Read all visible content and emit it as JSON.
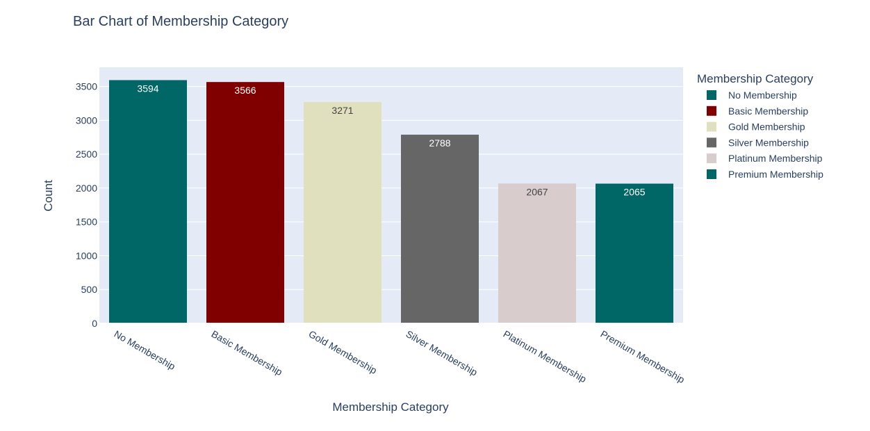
{
  "chart_data": {
    "type": "bar",
    "title": "Bar Chart of Membership Category",
    "xlabel": "Membership Category",
    "ylabel": "Count",
    "categories": [
      "No Membership",
      "Basic Membership",
      "Gold Membership",
      "Silver Membership",
      "Platinum Membership",
      "Premium Membership"
    ],
    "values": [
      3594,
      3566,
      3271,
      2788,
      2067,
      2065
    ],
    "colors": [
      "#006666",
      "#800000",
      "#e0e0be",
      "#666666",
      "#d8cccc",
      "#006666"
    ],
    "label_colors": [
      "#ffffff",
      "#ffffff",
      "#444444",
      "#ffffff",
      "#444444",
      "#ffffff"
    ],
    "yticks": [
      0,
      500,
      1000,
      1500,
      2000,
      2500,
      3000,
      3500
    ],
    "ylim": [
      0,
      3783
    ],
    "grid": true,
    "legend": {
      "title": "Membership Category",
      "position": "right",
      "entries": [
        "No Membership",
        "Basic Membership",
        "Gold Membership",
        "Silver Membership",
        "Platinum Membership",
        "Premium Membership"
      ]
    },
    "plot_background": "#e5ebf6"
  }
}
